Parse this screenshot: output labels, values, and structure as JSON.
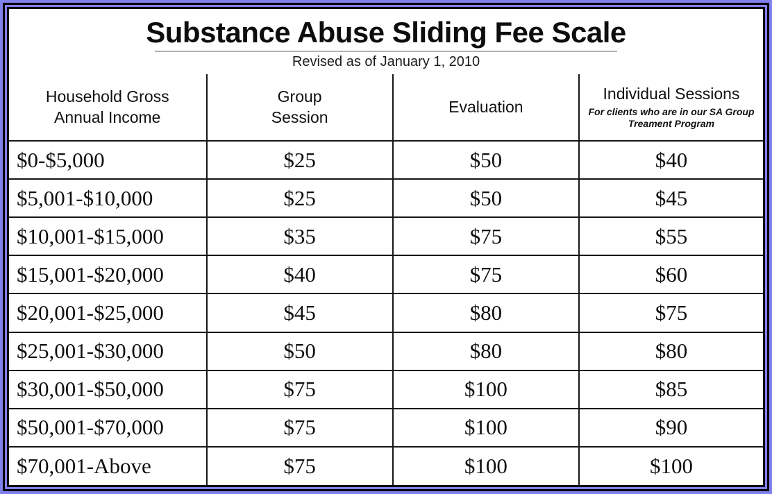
{
  "document": {
    "title": "Substance Abuse Sliding Fee Scale",
    "revision_note": "Revised as of January 1, 2010"
  },
  "colors": {
    "frame_accent": "#8181EE",
    "frame_line": "#000000",
    "title_rule_gray": "#B3B3B3",
    "text": "#141414"
  },
  "table": {
    "column_keys": [
      "income-range",
      "group-session-fee",
      "evaluation-fee",
      "individual-session-fee"
    ],
    "columns": [
      {
        "label": "Household Gross\nAnnual Income",
        "note": ""
      },
      {
        "label": "Group\nSession",
        "note": ""
      },
      {
        "label": "Evaluation",
        "note": ""
      },
      {
        "label": "Individual Sessions",
        "note": "For clients who are in our SA Group\nTreament Program"
      }
    ],
    "rows": [
      [
        "$0-$5,000",
        "$25",
        "$50",
        "$40"
      ],
      [
        "$5,001-$10,000",
        "$25",
        "$50",
        "$45"
      ],
      [
        "$10,001-$15,000",
        "$35",
        "$75",
        "$55"
      ],
      [
        "$15,001-$20,000",
        "$40",
        "$75",
        "$60"
      ],
      [
        "$20,001-$25,000",
        "$45",
        "$80",
        "$75"
      ],
      [
        "$25,001-$30,000",
        "$50",
        "$80",
        "$80"
      ],
      [
        "$30,001-$50,000",
        "$75",
        "$100",
        "$85"
      ],
      [
        "$50,001-$70,000",
        "$75",
        "$100",
        "$90"
      ],
      [
        "$70,001-Above",
        "$75",
        "$100",
        "$100"
      ]
    ]
  }
}
